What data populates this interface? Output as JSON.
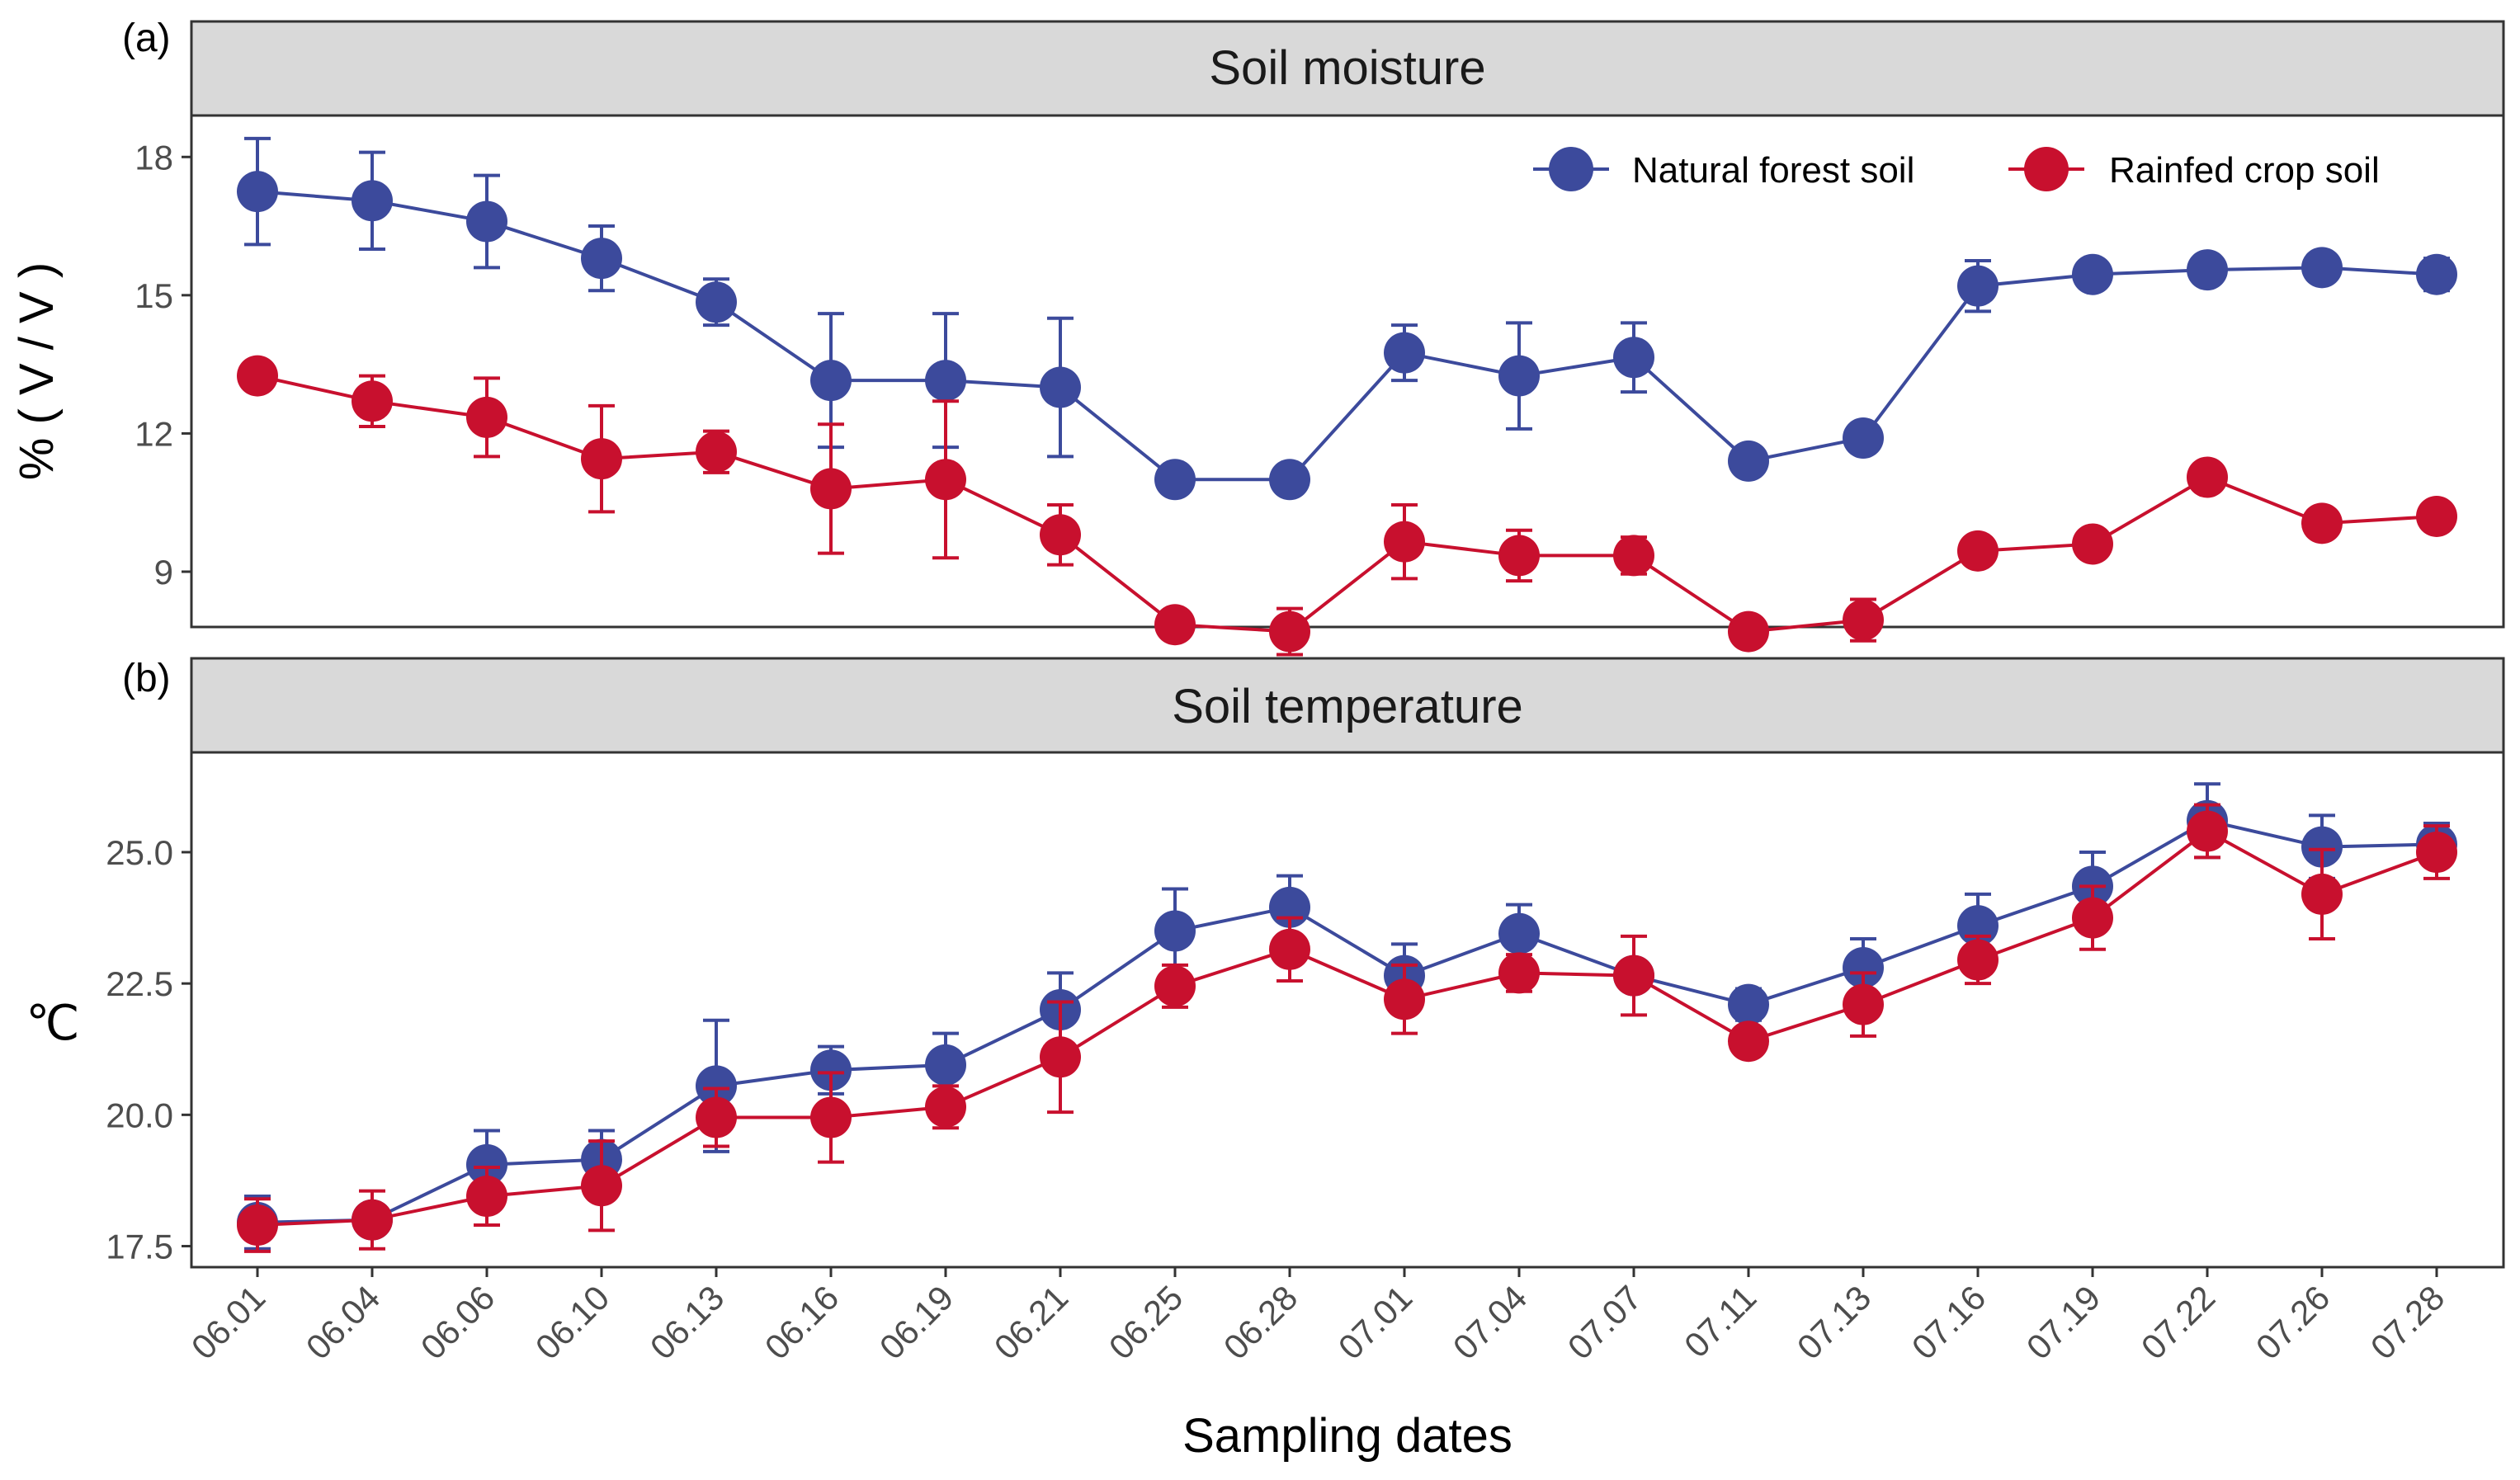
{
  "chart_data": {
    "type": "line",
    "categories": [
      "06.01",
      "06.04",
      "06.06",
      "06.10",
      "06.13",
      "06.16",
      "06.19",
      "06.21",
      "06.25",
      "06.28",
      "07.01",
      "07.04",
      "07.07",
      "07.11",
      "07.13",
      "07.16",
      "07.19",
      "07.22",
      "07.26",
      "07.28"
    ],
    "xlabel": "Sampling dates",
    "legend": {
      "placement": "top-right",
      "entries": [
        "Natural forest soil",
        "Rainfed crop soil"
      ]
    },
    "colors": {
      "Natural forest soil": "#3c4a9c",
      "Rainfed crop soil": "#c8102e"
    },
    "panels": [
      {
        "tag": "(a)",
        "title": "Soil moisture",
        "ylabel": "% ( V / V )",
        "ylim": [
          7.8,
          18.9
        ],
        "yticks": [
          9,
          12,
          15,
          18
        ],
        "ytick_labels": [
          "9",
          "12",
          "15",
          "18"
        ],
        "series": [
          {
            "name": "Natural forest soil",
            "values": [
              17.25,
              17.05,
              16.6,
              15.8,
              14.85,
              13.15,
              13.15,
              13.0,
              11.0,
              11.0,
              13.75,
              13.25,
              13.65,
              11.4,
              11.9,
              15.2,
              15.45,
              15.55,
              15.6,
              15.45
            ],
            "errors": [
              1.15,
              1.05,
              1.0,
              0.7,
              0.5,
              1.45,
              1.45,
              1.5,
              0.0,
              0.0,
              0.6,
              1.15,
              0.75,
              0.0,
              0.0,
              0.55,
              0.0,
              0.0,
              0.0,
              0.35
            ]
          },
          {
            "name": "Rainfed crop soil",
            "values": [
              13.25,
              12.7,
              12.35,
              11.45,
              11.6,
              10.8,
              11.0,
              9.8,
              7.85,
              7.7,
              9.65,
              9.35,
              9.35,
              7.7,
              7.95,
              9.45,
              9.6,
              11.05,
              10.05,
              10.2
            ],
            "errors": [
              0.0,
              0.55,
              0.85,
              1.15,
              0.45,
              1.4,
              1.7,
              0.65,
              0.0,
              0.5,
              0.8,
              0.55,
              0.4,
              0.0,
              0.45,
              0.0,
              0.0,
              0.0,
              0.0,
              0.0
            ]
          }
        ]
      },
      {
        "tag": "(b)",
        "title": "Soil temperature",
        "ylabel": "℃",
        "ylim": [
          17.1,
          26.9
        ],
        "yticks": [
          17.5,
          20.0,
          22.5,
          25.0
        ],
        "ytick_labels": [
          "17.5",
          "20.0",
          "22.5",
          "25.0"
        ],
        "series": [
          {
            "name": "Natural forest soil",
            "values": [
              17.95,
              18.0,
              19.05,
              19.15,
              20.55,
              20.85,
              20.95,
              22.0,
              23.5,
              23.95,
              22.65,
              23.45,
              22.65,
              22.1,
              22.8,
              23.6,
              24.35,
              25.6,
              25.1,
              25.15
            ],
            "errors": [
              0.5,
              0.0,
              0.65,
              0.55,
              1.25,
              0.45,
              0.6,
              0.7,
              0.8,
              0.6,
              0.6,
              0.55,
              0.0,
              0.3,
              0.55,
              0.6,
              0.65,
              0.7,
              0.6,
              0.4
            ]
          },
          {
            "name": "Rainfed crop soil",
            "values": [
              17.9,
              18.0,
              18.45,
              18.65,
              19.95,
              19.95,
              20.15,
              21.1,
              22.45,
              23.15,
              22.2,
              22.7,
              22.65,
              21.4,
              22.1,
              22.95,
              23.75,
              25.4,
              24.2,
              25.0
            ],
            "errors": [
              0.5,
              0.55,
              0.55,
              0.85,
              0.55,
              0.85,
              0.4,
              1.05,
              0.4,
              0.6,
              0.65,
              0.35,
              0.75,
              0.0,
              0.6,
              0.45,
              0.6,
              0.5,
              0.85,
              0.5
            ]
          }
        ]
      }
    ]
  }
}
